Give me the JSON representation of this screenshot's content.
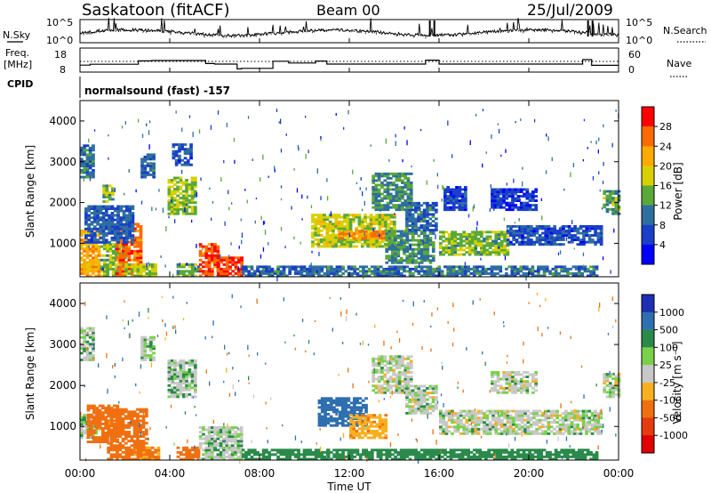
{
  "header": {
    "station": "Saskatoon (fitACF)",
    "beam": "Beam 00",
    "date": "25/Jul/2009"
  },
  "panels": {
    "nsky": {
      "left_label": "N.Sky",
      "right_label": "N.Search",
      "ticks_left": [
        "10^5",
        "10^0"
      ],
      "ticks_right": [
        "10^5",
        "10^0"
      ]
    },
    "freq": {
      "left_label_1": "Freq.",
      "left_label_2": "[MHz]",
      "right_label": "Nave",
      "ticks_left": [
        "18",
        "8"
      ],
      "ticks_right": [
        "60",
        "0"
      ]
    },
    "cpid": {
      "left_label": "CPID",
      "program": "normalsound (fast) -157"
    },
    "power": {
      "ylabel": "Slant Range [km]",
      "cbar_label": "Power [dB]",
      "yticks": [
        "4000",
        "3000",
        "2000",
        "1000"
      ],
      "cbar_ticks": [
        "28",
        "24",
        "20",
        "16",
        "12",
        "8",
        "4"
      ],
      "cbar_colors": [
        "#ff0000",
        "#ff6a00",
        "#ffaa00",
        "#d8d000",
        "#5aa838",
        "#2e6fa0",
        "#1a3fc8",
        "#0000ff"
      ]
    },
    "velocity": {
      "ylabel": "Slant Range [km]",
      "cbar_label": "Velocity [m s⁻¹]",
      "yticks": [
        "4000",
        "3000",
        "2000",
        "1000"
      ],
      "cbar_ticks": [
        "1000",
        "500",
        "100",
        "25",
        "-25",
        "-100",
        "-500",
        "-1000"
      ],
      "cbar_colors": [
        "#1f2fb4",
        "#2e6fb0",
        "#2a8a4a",
        "#79d14a",
        "#c8c8c8",
        "#f8b020",
        "#f07010",
        "#e63a10",
        "#e00000"
      ]
    }
  },
  "x_axis": {
    "label": "Time UT",
    "ticks": [
      "00:00",
      "04:00",
      "08:00",
      "12:00",
      "16:00",
      "20:00",
      "00:00"
    ]
  },
  "chart_data": {
    "type": "heatmap",
    "title": "Saskatoon (fitACF)",
    "xlabel": "Time UT",
    "ylabel": "Slant Range [km]",
    "xlim": [
      0,
      24
    ],
    "ylim": [
      180,
      4500
    ],
    "freq_steps_MHz": [
      [
        0.0,
        0.45,
        10.4
      ],
      [
        0.45,
        2.6,
        10.9
      ],
      [
        2.6,
        3.2,
        12.8
      ],
      [
        3.2,
        5.6,
        13.0
      ],
      [
        5.6,
        6.0,
        11.3
      ],
      [
        6.0,
        7.0,
        11.0
      ],
      [
        7.0,
        7.2,
        8.3
      ],
      [
        7.2,
        8.6,
        8.6
      ],
      [
        8.6,
        9.3,
        12.6
      ],
      [
        9.3,
        10.5,
        11.6
      ],
      [
        10.5,
        11.0,
        12.7
      ],
      [
        11.0,
        15.4,
        11.0
      ],
      [
        15.4,
        16.0,
        13.2
      ],
      [
        16.0,
        22.4,
        11.0
      ],
      [
        22.4,
        22.8,
        13.5
      ],
      [
        22.8,
        24.0,
        10.3
      ]
    ],
    "power_regions": [
      {
        "t0": 0.0,
        "t1": 0.9,
        "r0": 180,
        "r1": 1300,
        "power_dB": 22
      },
      {
        "t0": 0.9,
        "t1": 2.0,
        "r0": 180,
        "r1": 1000,
        "power_dB": 15
      },
      {
        "t0": 1.6,
        "t1": 2.7,
        "r0": 180,
        "r1": 1450,
        "power_dB": 26
      },
      {
        "t0": 2.0,
        "t1": 3.3,
        "r0": 180,
        "r1": 500,
        "power_dB": 16
      },
      {
        "t0": 0.2,
        "t1": 2.3,
        "r0": 1000,
        "r1": 1900,
        "power_dB": 8
      },
      {
        "t0": 0.0,
        "t1": 0.6,
        "r0": 2600,
        "r1": 3400,
        "power_dB": 10
      },
      {
        "t0": 1.0,
        "t1": 1.5,
        "r0": 2000,
        "r1": 2400,
        "power_dB": 15
      },
      {
        "t0": 2.7,
        "t1": 3.3,
        "r0": 2600,
        "r1": 3200,
        "power_dB": 9
      },
      {
        "t0": 3.9,
        "t1": 5.1,
        "r0": 1700,
        "r1": 2600,
        "power_dB": 16
      },
      {
        "t0": 4.1,
        "t1": 5.0,
        "r0": 2900,
        "r1": 3400,
        "power_dB": 7
      },
      {
        "t0": 4.3,
        "t1": 5.3,
        "r0": 180,
        "r1": 500,
        "power_dB": 14
      },
      {
        "t0": 5.3,
        "t1": 6.1,
        "r0": 180,
        "r1": 1000,
        "power_dB": 27
      },
      {
        "t0": 6.1,
        "t1": 7.2,
        "r0": 180,
        "r1": 650,
        "power_dB": 28
      },
      {
        "t0": 7.2,
        "t1": 11.0,
        "r0": 180,
        "r1": 450,
        "power_dB": 9
      },
      {
        "t0": 10.3,
        "t1": 14.0,
        "r0": 900,
        "r1": 1700,
        "power_dB": 17
      },
      {
        "t0": 11.5,
        "t1": 13.6,
        "r0": 1100,
        "r1": 1300,
        "power_dB": 24
      },
      {
        "t0": 13.6,
        "t1": 15.8,
        "r0": 500,
        "r1": 1300,
        "power_dB": 12
      },
      {
        "t0": 13.0,
        "t1": 14.8,
        "r0": 1800,
        "r1": 2700,
        "power_dB": 12
      },
      {
        "t0": 14.5,
        "t1": 15.9,
        "r0": 1300,
        "r1": 2000,
        "power_dB": 9
      },
      {
        "t0": 11.0,
        "t1": 23.0,
        "r0": 180,
        "r1": 450,
        "power_dB": 10
      },
      {
        "t0": 16.0,
        "t1": 19.0,
        "r0": 700,
        "r1": 1300,
        "power_dB": 15
      },
      {
        "t0": 16.2,
        "t1": 17.2,
        "r0": 1800,
        "r1": 2400,
        "power_dB": 6
      },
      {
        "t0": 19.0,
        "t1": 23.2,
        "r0": 950,
        "r1": 1400,
        "power_dB": 7
      },
      {
        "t0": 18.3,
        "t1": 20.3,
        "r0": 1800,
        "r1": 2300,
        "power_dB": 5
      },
      {
        "t0": 23.3,
        "t1": 24.0,
        "r0": 1700,
        "r1": 2300,
        "power_dB": 13
      }
    ],
    "velocity_regions": [
      {
        "t0": 0.0,
        "t1": 0.7,
        "r0": 700,
        "r1": 1300,
        "velocity": 15
      },
      {
        "t0": 0.3,
        "t1": 1.6,
        "r0": 600,
        "r1": 1500,
        "velocity": -150
      },
      {
        "t0": 1.2,
        "t1": 2.9,
        "r0": 180,
        "r1": 1400,
        "velocity": -160
      },
      {
        "t0": 2.0,
        "t1": 3.5,
        "r0": 180,
        "r1": 500,
        "velocity": -120
      },
      {
        "t0": 0.0,
        "t1": 0.6,
        "r0": 2600,
        "r1": 3400,
        "velocity": 10
      },
      {
        "t0": 2.7,
        "t1": 3.3,
        "r0": 2600,
        "r1": 3200,
        "velocity": 10
      },
      {
        "t0": 3.9,
        "t1": 5.1,
        "r0": 1700,
        "r1": 2600,
        "velocity": 12
      },
      {
        "t0": 4.3,
        "t1": 5.3,
        "r0": 180,
        "r1": 500,
        "velocity": -130
      },
      {
        "t0": 5.3,
        "t1": 7.2,
        "r0": 180,
        "r1": 1000,
        "velocity": 5
      },
      {
        "t0": 7.2,
        "t1": 11.0,
        "r0": 180,
        "r1": 450,
        "velocity": 60
      },
      {
        "t0": 10.6,
        "t1": 12.7,
        "r0": 1000,
        "r1": 1700,
        "velocity": 300
      },
      {
        "t0": 12.0,
        "t1": 13.6,
        "r0": 700,
        "r1": 1300,
        "velocity": -80
      },
      {
        "t0": 13.0,
        "t1": 14.8,
        "r0": 1800,
        "r1": 2700,
        "velocity": 0
      },
      {
        "t0": 14.5,
        "t1": 15.9,
        "r0": 1300,
        "r1": 2000,
        "velocity": 0
      },
      {
        "t0": 11.0,
        "t1": 23.0,
        "r0": 180,
        "r1": 450,
        "velocity": 60
      },
      {
        "t0": 16.0,
        "t1": 23.2,
        "r0": 800,
        "r1": 1400,
        "velocity": 0
      },
      {
        "t0": 18.3,
        "t1": 20.3,
        "r0": 1800,
        "r1": 2300,
        "velocity": 0
      },
      {
        "t0": 23.3,
        "t1": 24.0,
        "r0": 1700,
        "r1": 2300,
        "velocity": 0
      }
    ]
  }
}
